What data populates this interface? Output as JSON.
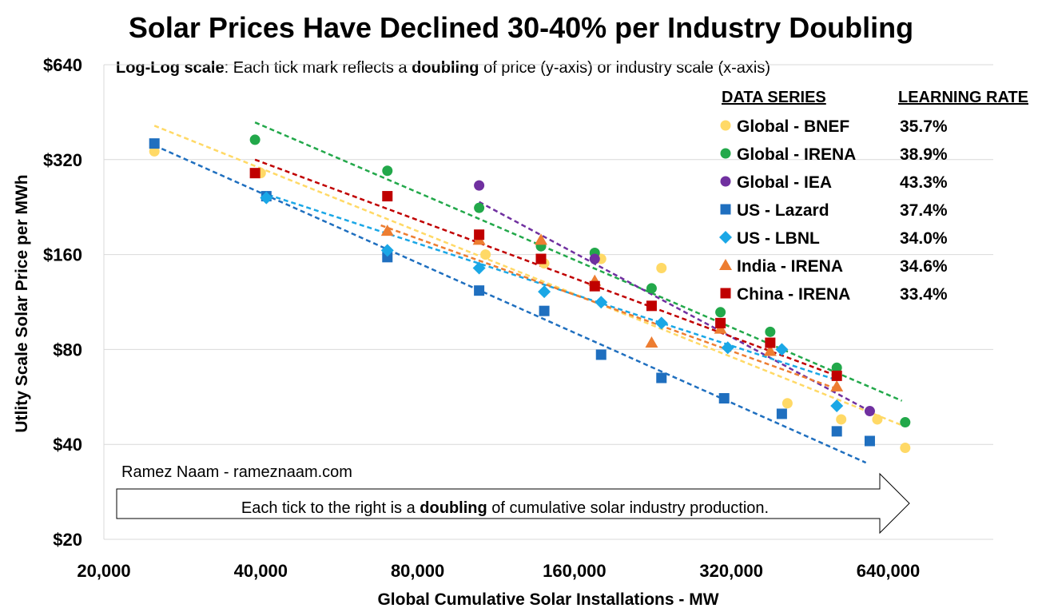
{
  "chart_data": {
    "type": "scatter",
    "title": "Solar Prices Have Declined 30-40% per Industry Doubling",
    "subtitle": {
      "scale_label": "Log-Log scale",
      "text_before": ": Each tick mark reflects a ",
      "bold_word": "doubling",
      "text_after": " of price (y-axis) or industry scale (x-axis)"
    },
    "xlabel": "Global Cumulative Solar Installations - MW",
    "ylabel": "Utlity Scale Solar Price per MWh",
    "x_scale": "log2",
    "y_scale": "log2",
    "xlim": [
      20000,
      900000
    ],
    "ylim": [
      20,
      640
    ],
    "x_ticks": [
      20000,
      40000,
      80000,
      160000,
      320000,
      640000
    ],
    "x_tick_labels": [
      "20,000",
      "40,000",
      "80,000",
      "160,000",
      "320,000",
      "640,000"
    ],
    "y_ticks": [
      20,
      40,
      80,
      160,
      320,
      640
    ],
    "y_tick_labels": [
      "$20",
      "$40",
      "$80",
      "$160",
      "$320",
      "$640"
    ],
    "grid": true,
    "legend": {
      "placement": "top-right",
      "header_series": "DATA SERIES",
      "header_rate": "LEARNING RATE"
    },
    "series": [
      {
        "name": "Global - BNEF",
        "learning_rate": "35.7%",
        "marker": "circle",
        "color": "#FFD966",
        "points": [
          [
            25000,
            340
          ],
          [
            40000,
            290
          ],
          [
            108000,
            160
          ],
          [
            140000,
            150
          ],
          [
            180000,
            155
          ],
          [
            235000,
            145
          ],
          [
            410000,
            54
          ],
          [
            520000,
            48
          ],
          [
            610000,
            48
          ],
          [
            690000,
            39
          ]
        ],
        "trend": [
          [
            25000,
            410
          ],
          [
            680000,
            46
          ]
        ]
      },
      {
        "name": "Global - IRENA",
        "learning_rate": "38.9%",
        "marker": "circle",
        "color": "#22A84A",
        "points": [
          [
            39000,
            370
          ],
          [
            70000,
            295
          ],
          [
            105000,
            225
          ],
          [
            138000,
            170
          ],
          [
            175000,
            162
          ],
          [
            225000,
            125
          ],
          [
            305000,
            105
          ],
          [
            380000,
            91
          ],
          [
            510000,
            70
          ],
          [
            690000,
            47
          ]
        ],
        "trend": [
          [
            39000,
            420
          ],
          [
            680000,
            55
          ]
        ]
      },
      {
        "name": "Global - IEA",
        "learning_rate": "43.3%",
        "marker": "circle",
        "color": "#7030A0",
        "points": [
          [
            105000,
            265
          ],
          [
            175000,
            155
          ],
          [
            590000,
            51
          ]
        ],
        "trend": [
          [
            105000,
            235
          ],
          [
            590000,
            51
          ]
        ]
      },
      {
        "name": "US - Lazard",
        "learning_rate": "37.4%",
        "marker": "square",
        "color": "#1F6FBF",
        "points": [
          [
            25000,
            360
          ],
          [
            41000,
            245
          ],
          [
            70000,
            157
          ],
          [
            105000,
            123
          ],
          [
            140000,
            106
          ],
          [
            180000,
            77
          ],
          [
            235000,
            65
          ],
          [
            310000,
            56
          ],
          [
            400000,
            50
          ],
          [
            510000,
            44
          ],
          [
            590000,
            41
          ]
        ],
        "trend": [
          [
            25000,
            355
          ],
          [
            580000,
            35
          ]
        ]
      },
      {
        "name": "US - LBNL",
        "learning_rate": "34.0%",
        "marker": "diamond",
        "color": "#1AA7E6",
        "points": [
          [
            41000,
            242
          ],
          [
            70000,
            165
          ],
          [
            105000,
            145
          ],
          [
            140000,
            122
          ],
          [
            180000,
            113
          ],
          [
            235000,
            97
          ],
          [
            315000,
            81
          ],
          [
            400000,
            80
          ],
          [
            510000,
            53
          ]
        ],
        "trend": [
          [
            40000,
            252
          ],
          [
            510000,
            64
          ]
        ]
      },
      {
        "name": "India - IRENA",
        "learning_rate": "34.6%",
        "marker": "triangle",
        "color": "#ED7D31",
        "points": [
          [
            70000,
            190
          ],
          [
            105000,
            178
          ],
          [
            138000,
            178
          ],
          [
            175000,
            132
          ],
          [
            225000,
            84
          ],
          [
            305000,
            93
          ],
          [
            380000,
            79
          ],
          [
            510000,
            61
          ]
        ],
        "trend": [
          [
            68000,
            198
          ],
          [
            510000,
            60
          ]
        ]
      },
      {
        "name": "China - IRENA",
        "learning_rate": "33.4%",
        "marker": "square",
        "color": "#C00000",
        "points": [
          [
            39000,
            290
          ],
          [
            70000,
            245
          ],
          [
            105000,
            185
          ],
          [
            138000,
            155
          ],
          [
            175000,
            127
          ],
          [
            225000,
            110
          ],
          [
            305000,
            97
          ],
          [
            380000,
            84
          ],
          [
            510000,
            66
          ]
        ],
        "trend": [
          [
            39000,
            320
          ],
          [
            510000,
            66
          ]
        ]
      }
    ],
    "annotations": {
      "credit": "Ramez Naam - rameznaam.com",
      "arrow_text_before": "Each tick to the right is a ",
      "arrow_text_bold": "doubling",
      "arrow_text_after": " of cumulative solar industry production."
    }
  }
}
